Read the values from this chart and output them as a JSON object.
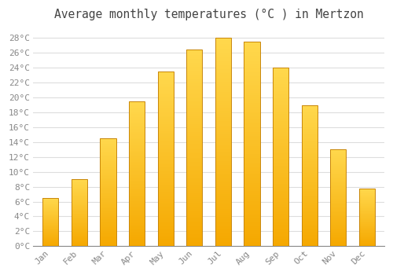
{
  "title": "Average monthly temperatures (°C ) in Mertzon",
  "months": [
    "Jan",
    "Feb",
    "Mar",
    "Apr",
    "May",
    "Jun",
    "Jul",
    "Aug",
    "Sep",
    "Oct",
    "Nov",
    "Dec"
  ],
  "values": [
    6.5,
    9.0,
    14.5,
    19.5,
    23.5,
    26.5,
    28.0,
    27.5,
    24.0,
    19.0,
    13.0,
    7.8
  ],
  "bar_color_bottom": "#F5A800",
  "bar_color_top": "#FFD84D",
  "bar_edge_color": "#C8860A",
  "background_color": "#FFFFFF",
  "plot_bg_color": "#FFFFFF",
  "grid_color": "#DDDDDD",
  "ylim": [
    0,
    29.5
  ],
  "yticks": [
    0,
    2,
    4,
    6,
    8,
    10,
    12,
    14,
    16,
    18,
    20,
    22,
    24,
    26,
    28
  ],
  "ytick_labels": [
    "0°C",
    "2°C",
    "4°C",
    "6°C",
    "8°C",
    "10°C",
    "12°C",
    "14°C",
    "16°C",
    "18°C",
    "20°C",
    "22°C",
    "24°C",
    "26°C",
    "28°C"
  ],
  "title_fontsize": 10.5,
  "tick_fontsize": 8,
  "tick_color": "#888888",
  "font_family": "monospace",
  "bar_width": 0.55
}
